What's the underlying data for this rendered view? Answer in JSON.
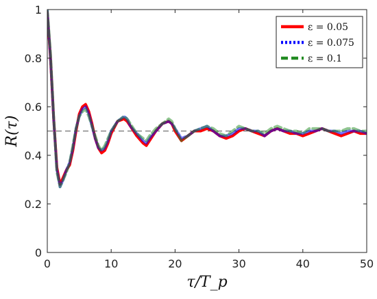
{
  "chart_data": {
    "type": "line",
    "title": "",
    "xlabel": "τ/T_p",
    "ylabel": "R(τ)",
    "xlim": [
      0,
      50
    ],
    "ylim": [
      0,
      1
    ],
    "xticks": [
      0,
      10,
      20,
      30,
      40,
      50
    ],
    "yticks": [
      0,
      0.2,
      0.4,
      0.6,
      0.8,
      1
    ],
    "xtick_labels": [
      "0",
      "10",
      "20",
      "30",
      "40",
      "50"
    ],
    "ytick_labels": [
      "0",
      "0.2",
      "0.4",
      "0.6",
      "0.8",
      "1"
    ],
    "grid": false,
    "legend_position": "top-right",
    "reference_line": {
      "y": 0.5,
      "style": "dashed",
      "color": "#555555"
    },
    "series": [
      {
        "name": "ε = 0.05",
        "color": "#ff0000",
        "dash": "solid",
        "x": [
          0,
          0.5,
          1,
          1.5,
          2,
          2.5,
          3,
          3.5,
          4,
          4.5,
          5,
          5.5,
          6,
          6.5,
          7,
          7.5,
          8,
          8.5,
          9,
          9.5,
          10,
          11,
          12,
          12.5,
          13,
          14,
          15,
          15.5,
          16,
          17,
          18,
          19,
          19.5,
          20,
          21,
          22,
          23,
          24,
          25,
          26,
          27,
          28,
          29,
          30,
          31,
          32,
          33,
          34,
          35,
          36,
          37,
          38,
          39,
          40,
          41,
          42,
          43,
          44,
          45,
          46,
          47,
          48,
          49,
          50
        ],
        "y": [
          0.99,
          0.8,
          0.55,
          0.35,
          0.28,
          0.31,
          0.34,
          0.36,
          0.42,
          0.5,
          0.57,
          0.6,
          0.61,
          0.58,
          0.53,
          0.47,
          0.43,
          0.41,
          0.42,
          0.45,
          0.49,
          0.54,
          0.55,
          0.54,
          0.52,
          0.48,
          0.45,
          0.44,
          0.46,
          0.5,
          0.53,
          0.54,
          0.53,
          0.5,
          0.46,
          0.48,
          0.5,
          0.5,
          0.51,
          0.5,
          0.48,
          0.47,
          0.48,
          0.5,
          0.51,
          0.5,
          0.49,
          0.48,
          0.5,
          0.51,
          0.5,
          0.49,
          0.49,
          0.48,
          0.49,
          0.5,
          0.51,
          0.5,
          0.49,
          0.48,
          0.49,
          0.5,
          0.49,
          0.49
        ]
      },
      {
        "name": "ε = 0.075",
        "color": "#0000ff",
        "dash": "dotted",
        "x": [
          0,
          0.5,
          1,
          1.5,
          2,
          2.5,
          3,
          3.5,
          4,
          4.5,
          5,
          5.5,
          6,
          6.5,
          7,
          7.5,
          8,
          8.5,
          9,
          9.5,
          10,
          11,
          12,
          12.5,
          13,
          14,
          15,
          15.5,
          16,
          17,
          18,
          19,
          19.5,
          20,
          21,
          22,
          23,
          24,
          25,
          26,
          27,
          28,
          29,
          30,
          31,
          32,
          33,
          34,
          35,
          36,
          37,
          38,
          39,
          40,
          41,
          42,
          43,
          44,
          45,
          46,
          47,
          48,
          49,
          50
        ],
        "y": [
          1.0,
          0.8,
          0.55,
          0.34,
          0.27,
          0.3,
          0.34,
          0.37,
          0.43,
          0.51,
          0.56,
          0.59,
          0.6,
          0.57,
          0.52,
          0.47,
          0.43,
          0.42,
          0.43,
          0.46,
          0.5,
          0.54,
          0.56,
          0.55,
          0.52,
          0.49,
          0.46,
          0.45,
          0.47,
          0.5,
          0.53,
          0.54,
          0.53,
          0.51,
          0.47,
          0.48,
          0.5,
          0.51,
          0.52,
          0.5,
          0.48,
          0.48,
          0.49,
          0.51,
          0.51,
          0.5,
          0.5,
          0.48,
          0.5,
          0.51,
          0.5,
          0.5,
          0.49,
          0.49,
          0.5,
          0.5,
          0.51,
          0.5,
          0.5,
          0.49,
          0.5,
          0.5,
          0.5,
          0.49
        ]
      },
      {
        "name": "ε = 0.1",
        "color": "#228b22",
        "dash": "dashed",
        "x": [
          0,
          0.5,
          1,
          1.5,
          2,
          2.5,
          3,
          3.5,
          4,
          4.5,
          5,
          5.5,
          6,
          6.5,
          7,
          7.5,
          8,
          8.5,
          9,
          9.5,
          10,
          11,
          12,
          12.5,
          13,
          14,
          15,
          15.5,
          16,
          17,
          18,
          19,
          19.5,
          20,
          21,
          22,
          23,
          24,
          25,
          26,
          27,
          28,
          29,
          30,
          31,
          32,
          33,
          34,
          35,
          36,
          37,
          38,
          39,
          40,
          41,
          42,
          43,
          44,
          45,
          46,
          47,
          48,
          49,
          50
        ],
        "y": [
          1.0,
          0.82,
          0.56,
          0.33,
          0.27,
          0.3,
          0.33,
          0.37,
          0.44,
          0.51,
          0.56,
          0.58,
          0.59,
          0.56,
          0.52,
          0.48,
          0.44,
          0.42,
          0.44,
          0.47,
          0.5,
          0.54,
          0.56,
          0.55,
          0.53,
          0.49,
          0.47,
          0.46,
          0.48,
          0.51,
          0.53,
          0.55,
          0.54,
          0.51,
          0.46,
          0.48,
          0.5,
          0.51,
          0.52,
          0.51,
          0.49,
          0.48,
          0.5,
          0.52,
          0.51,
          0.5,
          0.5,
          0.49,
          0.51,
          0.52,
          0.51,
          0.5,
          0.5,
          0.49,
          0.51,
          0.51,
          0.51,
          0.5,
          0.5,
          0.5,
          0.51,
          0.51,
          0.5,
          0.5
        ]
      }
    ]
  }
}
